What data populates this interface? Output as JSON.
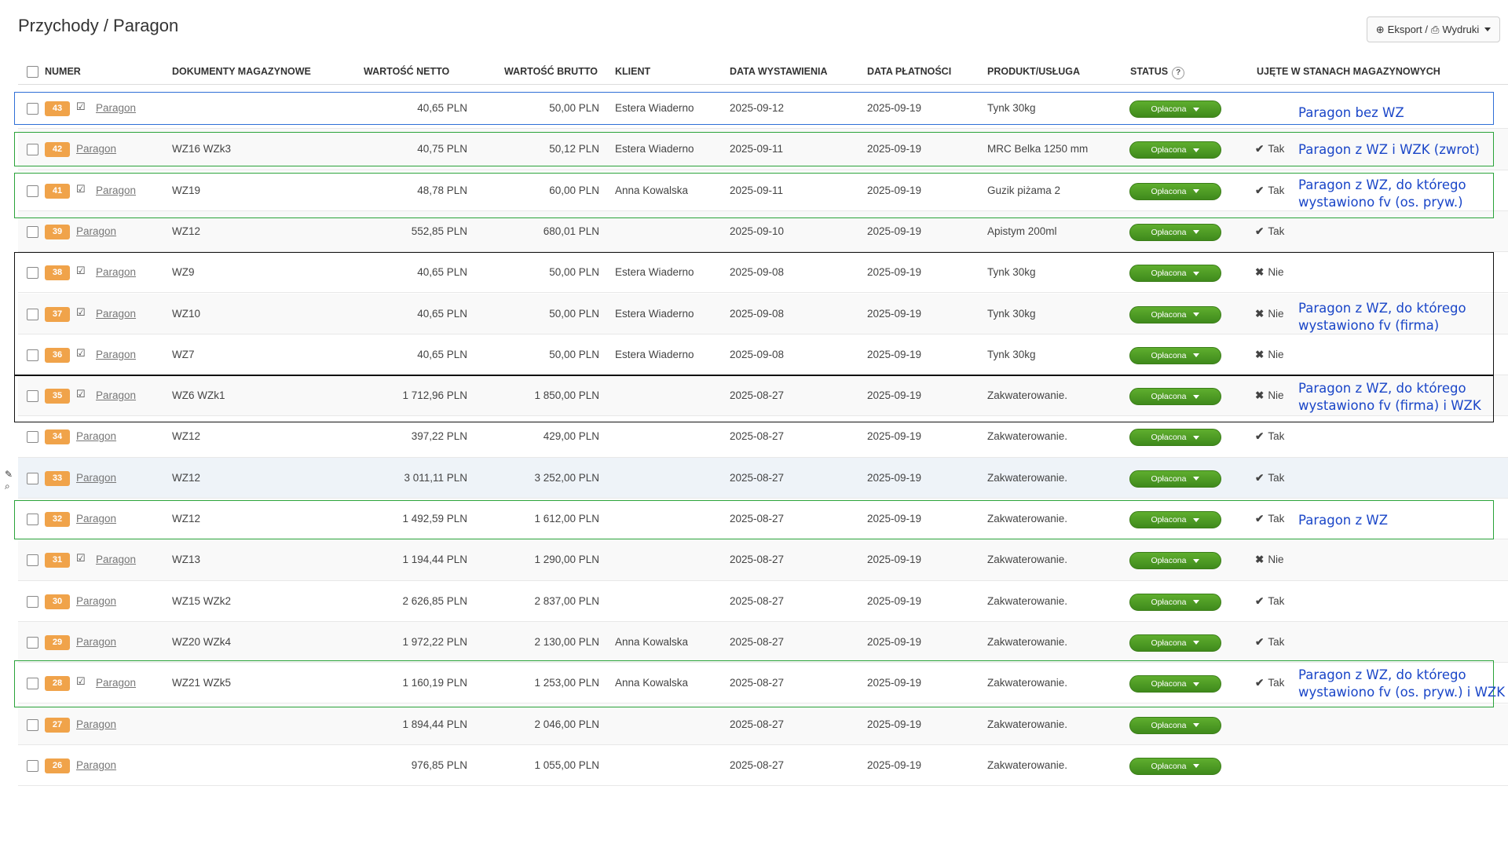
{
  "page": {
    "title": "Przychody / Paragon"
  },
  "toolbar": {
    "export_label": "Eksport / ",
    "print_label": "Wydruki"
  },
  "table": {
    "headers": {
      "numer": "NUMER",
      "dokumenty": "DOKUMENTY MAGAZYNOWE",
      "netto": "WARTOŚĆ NETTO",
      "brutto": "WARTOŚĆ BRUTTO",
      "klient": "KLIENT",
      "data_wyst": "DATA WYSTAWIENIA",
      "data_plat": "DATA PŁATNOŚCI",
      "produkt": "PRODUKT/USŁUGA",
      "status": "STATUS",
      "stan": "UJĘTE W STANACH MAGAZYNOWYCH"
    },
    "status_help": "?",
    "rows": [
      {
        "num": "43",
        "sent": true,
        "doc": "Paragon",
        "wz": "",
        "netto": "40,65 PLN",
        "brutto": "50,00 PLN",
        "klient": "Estera Wiaderno",
        "wyst": "2025-09-12",
        "plat": "2025-09-19",
        "produkt": "Tynk 30kg",
        "status": "Opłacona",
        "stan": "",
        "stan_mark": ""
      },
      {
        "num": "42",
        "sent": false,
        "doc": "Paragon",
        "wz": "WZ16 WZk3",
        "netto": "40,75 PLN",
        "brutto": "50,12 PLN",
        "klient": "Estera Wiaderno",
        "wyst": "2025-09-11",
        "plat": "2025-09-19",
        "produkt": "MRC Belka 1250 mm",
        "status": "Opłacona",
        "stan": "Tak",
        "stan_mark": "✔"
      },
      {
        "num": "41",
        "sent": true,
        "doc": "Paragon",
        "wz": "WZ19",
        "netto": "48,78 PLN",
        "brutto": "60,00 PLN",
        "klient": "Anna Kowalska",
        "wyst": "2025-09-11",
        "plat": "2025-09-19",
        "produkt": "Guzik piżama 2",
        "status": "Opłacona",
        "stan": "Tak",
        "stan_mark": "✔"
      },
      {
        "num": "39",
        "sent": false,
        "doc": "Paragon",
        "wz": "WZ12",
        "netto": "552,85 PLN",
        "brutto": "680,01 PLN",
        "klient": "",
        "wyst": "2025-09-10",
        "plat": "2025-09-19",
        "produkt": "Apistym 200ml",
        "status": "Opłacona",
        "stan": "Tak",
        "stan_mark": "✔"
      },
      {
        "num": "38",
        "sent": true,
        "doc": "Paragon",
        "wz": "WZ9",
        "netto": "40,65 PLN",
        "brutto": "50,00 PLN",
        "klient": "Estera Wiaderno",
        "wyst": "2025-09-08",
        "plat": "2025-09-19",
        "produkt": "Tynk 30kg",
        "status": "Opłacona",
        "stan": "Nie",
        "stan_mark": "✖"
      },
      {
        "num": "37",
        "sent": true,
        "doc": "Paragon",
        "wz": "WZ10",
        "netto": "40,65 PLN",
        "brutto": "50,00 PLN",
        "klient": "Estera Wiaderno",
        "wyst": "2025-09-08",
        "plat": "2025-09-19",
        "produkt": "Tynk 30kg",
        "status": "Opłacona",
        "stan": "Nie",
        "stan_mark": "✖"
      },
      {
        "num": "36",
        "sent": true,
        "doc": "Paragon",
        "wz": "WZ7",
        "netto": "40,65 PLN",
        "brutto": "50,00 PLN",
        "klient": "Estera Wiaderno",
        "wyst": "2025-09-08",
        "plat": "2025-09-19",
        "produkt": "Tynk 30kg",
        "status": "Opłacona",
        "stan": "Nie",
        "stan_mark": "✖"
      },
      {
        "num": "35",
        "sent": true,
        "doc": "Paragon",
        "wz": "WZ6 WZk1",
        "netto": "1 712,96 PLN",
        "brutto": "1 850,00 PLN",
        "klient": "",
        "wyst": "2025-08-27",
        "plat": "2025-09-19",
        "produkt": "Zakwaterowanie.",
        "status": "Opłacona",
        "stan": "Nie",
        "stan_mark": "✖"
      },
      {
        "num": "34",
        "sent": false,
        "doc": "Paragon",
        "wz": "WZ12",
        "netto": "397,22 PLN",
        "brutto": "429,00 PLN",
        "klient": "",
        "wyst": "2025-08-27",
        "plat": "2025-09-19",
        "produkt": "Zakwaterowanie.",
        "status": "Opłacona",
        "stan": "Tak",
        "stan_mark": "✔"
      },
      {
        "num": "33",
        "sent": false,
        "doc": "Paragon",
        "wz": "WZ12",
        "netto": "3 011,11 PLN",
        "brutto": "3 252,00 PLN",
        "klient": "",
        "wyst": "2025-08-27",
        "plat": "2025-09-19",
        "produkt": "Zakwaterowanie.",
        "status": "Opłacona",
        "stan": "Tak",
        "stan_mark": "✔"
      },
      {
        "num": "32",
        "sent": false,
        "doc": "Paragon",
        "wz": "WZ12",
        "netto": "1 492,59 PLN",
        "brutto": "1 612,00 PLN",
        "klient": "",
        "wyst": "2025-08-27",
        "plat": "2025-09-19",
        "produkt": "Zakwaterowanie.",
        "status": "Opłacona",
        "stan": "Tak",
        "stan_mark": "✔"
      },
      {
        "num": "31",
        "sent": true,
        "doc": "Paragon",
        "wz": "WZ13",
        "netto": "1 194,44 PLN",
        "brutto": "1 290,00 PLN",
        "klient": "",
        "wyst": "2025-08-27",
        "plat": "2025-09-19",
        "produkt": "Zakwaterowanie.",
        "status": "Opłacona",
        "stan": "Nie",
        "stan_mark": "✖"
      },
      {
        "num": "30",
        "sent": false,
        "doc": "Paragon",
        "wz": "WZ15 WZk2",
        "netto": "2 626,85 PLN",
        "brutto": "2 837,00 PLN",
        "klient": "",
        "wyst": "2025-08-27",
        "plat": "2025-09-19",
        "produkt": "Zakwaterowanie.",
        "status": "Opłacona",
        "stan": "Tak",
        "stan_mark": "✔"
      },
      {
        "num": "29",
        "sent": false,
        "doc": "Paragon",
        "wz": "WZ20 WZk4",
        "netto": "1 972,22 PLN",
        "brutto": "2 130,00 PLN",
        "klient": "Anna Kowalska",
        "wyst": "2025-08-27",
        "plat": "2025-09-19",
        "produkt": "Zakwaterowanie.",
        "status": "Opłacona",
        "stan": "Tak",
        "stan_mark": "✔"
      },
      {
        "num": "28",
        "sent": true,
        "doc": "Paragon",
        "wz": "WZ21 WZk5",
        "netto": "1 160,19 PLN",
        "brutto": "1 253,00 PLN",
        "klient": "Anna Kowalska",
        "wyst": "2025-08-27",
        "plat": "2025-09-19",
        "produkt": "Zakwaterowanie.",
        "status": "Opłacona",
        "stan": "Tak",
        "stan_mark": "✔"
      },
      {
        "num": "27",
        "sent": false,
        "doc": "Paragon",
        "wz": "",
        "netto": "1 894,44 PLN",
        "brutto": "2 046,00 PLN",
        "klient": "",
        "wyst": "2025-08-27",
        "plat": "2025-09-19",
        "produkt": "Zakwaterowanie.",
        "status": "Opłacona",
        "stan": "",
        "stan_mark": ""
      },
      {
        "num": "26",
        "sent": false,
        "doc": "Paragon",
        "wz": "",
        "netto": "976,85 PLN",
        "brutto": "1 055,00 PLN",
        "klient": "",
        "wyst": "2025-08-27",
        "plat": "2025-09-19",
        "produkt": "Zakwaterowanie.",
        "status": "Opłacona",
        "stan": "",
        "stan_mark": ""
      }
    ]
  },
  "annotations": [
    {
      "text": "Paragon bez WZ",
      "color": "#1a46c8"
    },
    {
      "text": "Paragon z WZ i WZK (zwrot)",
      "color": "#1a46c8"
    },
    {
      "text": "Paragon z WZ, do którego\nwystawiono fv (os. pryw.)",
      "color": "#1a46c8"
    },
    {
      "text": "Paragon z WZ, do którego\nwystawiono fv (firma)",
      "color": "#1a46c8"
    },
    {
      "text": "Paragon z WZ, do którego\nwystawiono fv (firma) i WZK",
      "color": "#1a46c8"
    },
    {
      "text": "Paragon z WZ",
      "color": "#1a46c8"
    },
    {
      "text": "Paragon z WZ, do którego\nwystawiono fv (os. pryw.) i WZK",
      "color": "#1a46c8"
    }
  ],
  "colors": {
    "badge": "#f0a34a",
    "status_green": "#4f9e25",
    "box_blue": "#2f6fd6",
    "box_green": "#2aa33a",
    "box_black": "#111111",
    "annotation": "#1a46c8"
  },
  "icons": {
    "export": "circle-arrow-icon",
    "print": "printer-icon",
    "sent": "check-square-icon",
    "edit": "pencil-icon",
    "zoom": "magnifier-icon"
  }
}
